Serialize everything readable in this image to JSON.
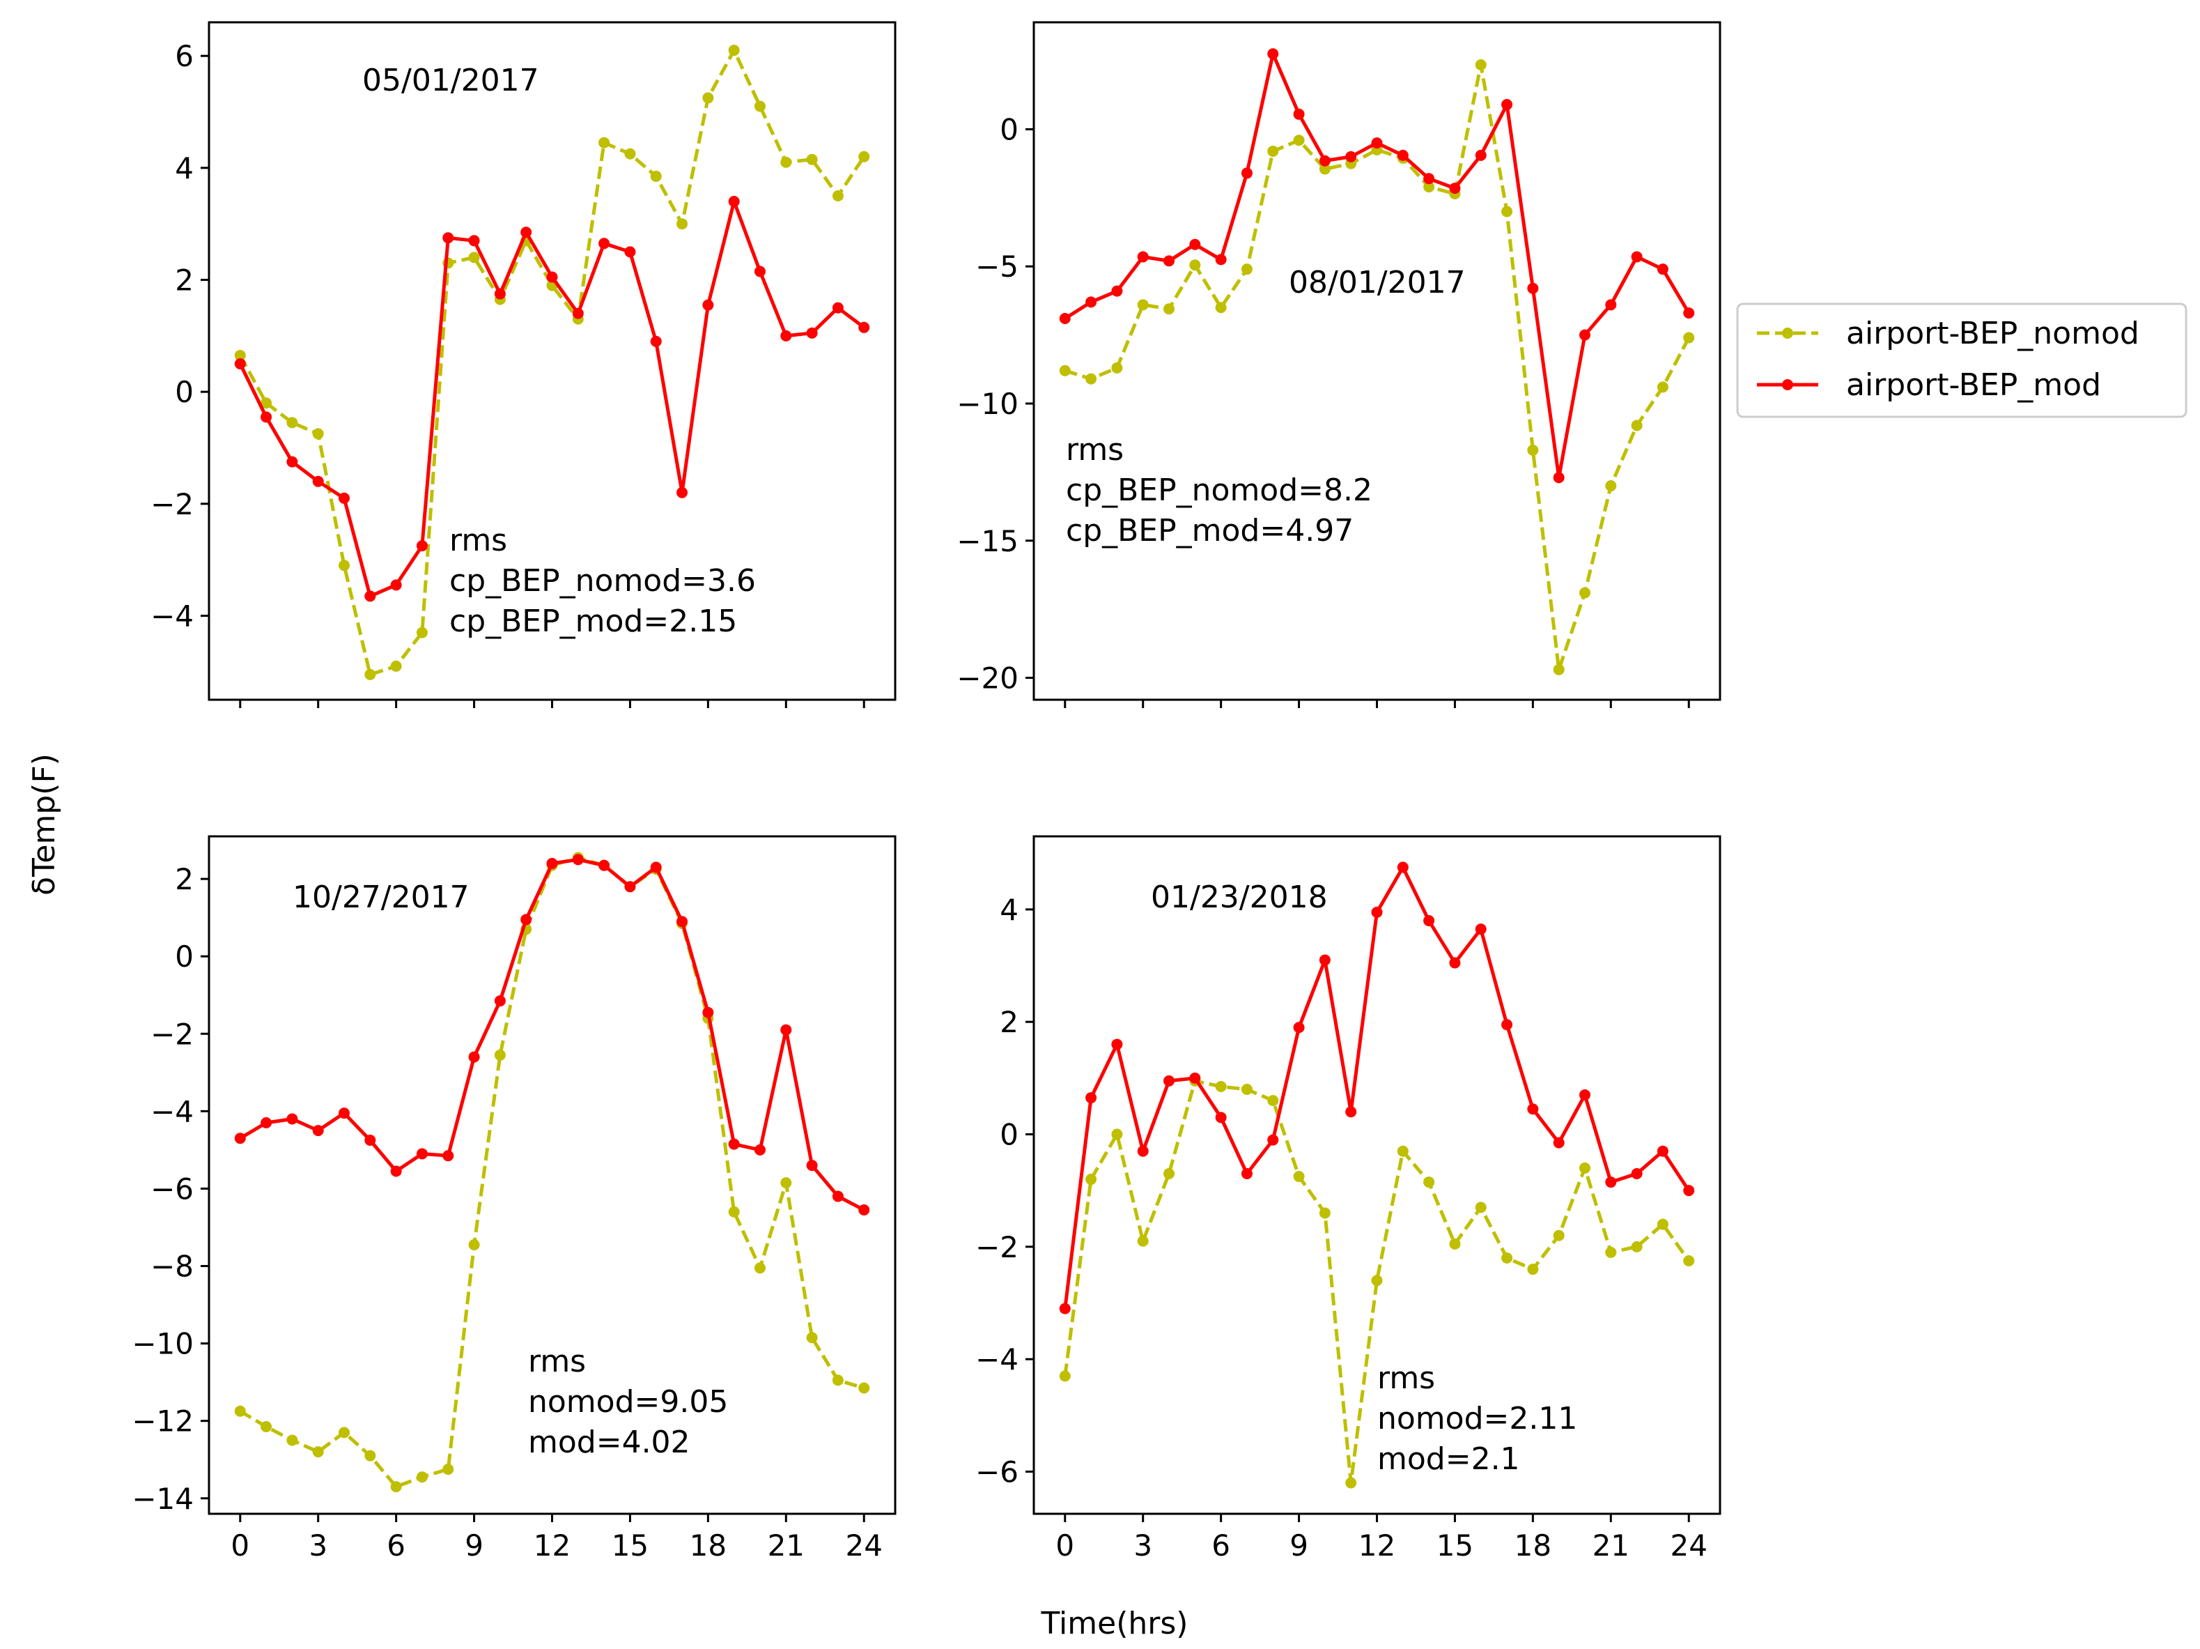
{
  "figure": {
    "ylabel": "δTemp(F)",
    "xlabel": "Time(hrs)"
  },
  "colors": {
    "nomod": "#bfbf00",
    "mod": "#ff0000",
    "axes": "#000000",
    "legend_border": "#cccccc"
  },
  "legend": {
    "placement": "right-center",
    "entries": [
      "airport-BEP_nomod",
      "airport-BEP_mod"
    ]
  },
  "chart_data": [
    {
      "type": "line",
      "title": "05/01/2017",
      "annotation": [
        "rms",
        "cp_BEP_nomod=3.6",
        "cp_BEP_mod=2.15"
      ],
      "x": [
        0,
        1,
        2,
        3,
        4,
        5,
        6,
        7,
        8,
        9,
        10,
        11,
        12,
        13,
        14,
        15,
        16,
        17,
        18,
        19,
        20,
        21,
        22,
        23,
        24
      ],
      "xlim": [
        -1.2,
        25.2
      ],
      "ylim": [
        -5.5,
        6.6
      ],
      "xticks": [
        0,
        3,
        6,
        9,
        12,
        15,
        18,
        21,
        24
      ],
      "xticklabels": [],
      "yticks": [
        -4,
        -2,
        0,
        2,
        4,
        6
      ],
      "yticklabels": [
        "−4",
        "−2",
        "0",
        "2",
        "4",
        "6"
      ],
      "series": [
        {
          "name": "airport-BEP_nomod",
          "style": "dashed",
          "values": [
            0.65,
            -0.2,
            -0.55,
            -0.75,
            -3.1,
            -5.05,
            -4.9,
            -4.3,
            2.3,
            2.4,
            1.65,
            2.7,
            1.9,
            1.3,
            4.45,
            4.25,
            3.85,
            3.0,
            5.25,
            6.1,
            5.1,
            4.1,
            4.15,
            3.5,
            4.2
          ]
        },
        {
          "name": "airport-BEP_mod",
          "style": "solid",
          "values": [
            0.5,
            -0.45,
            -1.25,
            -1.6,
            -1.9,
            -3.65,
            -3.45,
            -2.75,
            2.75,
            2.7,
            1.75,
            2.85,
            2.05,
            1.4,
            2.65,
            2.5,
            0.9,
            -1.8,
            1.55,
            3.4,
            2.15,
            1.0,
            1.05,
            1.5,
            1.15
          ]
        }
      ]
    },
    {
      "type": "line",
      "title": "08/01/2017",
      "annotation": [
        "rms",
        "cp_BEP_nomod=8.2",
        "cp_BEP_mod=4.97"
      ],
      "x": [
        0,
        1,
        2,
        3,
        4,
        5,
        6,
        7,
        8,
        9,
        10,
        11,
        12,
        13,
        14,
        15,
        16,
        17,
        18,
        19,
        20,
        21,
        22,
        23,
        24
      ],
      "xlim": [
        -1.2,
        25.2
      ],
      "ylim": [
        -20.8,
        3.9
      ],
      "xticks": [
        0,
        3,
        6,
        9,
        12,
        15,
        18,
        21,
        24
      ],
      "xticklabels": [],
      "yticks": [
        -20,
        -15,
        -10,
        -5,
        0
      ],
      "yticklabels": [
        "−20",
        "−15",
        "−10",
        "−5",
        "0"
      ],
      "series": [
        {
          "name": "airport-BEP_nomod",
          "style": "dashed",
          "values": [
            -8.8,
            -9.1,
            -8.7,
            -6.4,
            -6.55,
            -4.95,
            -6.5,
            -5.1,
            -0.8,
            -0.4,
            -1.45,
            -1.25,
            -0.75,
            -1.05,
            -2.1,
            -2.35,
            2.35,
            -3.0,
            -11.7,
            -19.7,
            -16.9,
            -13.0,
            -10.8,
            -9.4,
            -7.6
          ]
        },
        {
          "name": "airport-BEP_mod",
          "style": "solid",
          "values": [
            -6.9,
            -6.3,
            -5.9,
            -4.65,
            -4.8,
            -4.2,
            -4.75,
            -1.6,
            2.75,
            0.55,
            -1.15,
            -1.0,
            -0.5,
            -0.95,
            -1.8,
            -2.15,
            -0.95,
            0.9,
            -5.8,
            -12.7,
            -7.5,
            -6.4,
            -4.65,
            -5.1,
            -6.7
          ]
        }
      ]
    },
    {
      "type": "line",
      "title": "10/27/2017",
      "annotation": [
        "rms",
        "nomod=9.05",
        "mod=4.02"
      ],
      "x": [
        0,
        1,
        2,
        3,
        4,
        5,
        6,
        7,
        8,
        9,
        10,
        11,
        12,
        13,
        14,
        15,
        16,
        17,
        18,
        19,
        20,
        21,
        22,
        23,
        24
      ],
      "xlim": [
        -1.2,
        25.2
      ],
      "ylim": [
        -14.4,
        3.1
      ],
      "xticks": [
        0,
        3,
        6,
        9,
        12,
        15,
        18,
        21,
        24
      ],
      "xticklabels": [
        "0",
        "3",
        "6",
        "9",
        "12",
        "15",
        "18",
        "21",
        "24"
      ],
      "yticks": [
        -14,
        -12,
        -10,
        -8,
        -6,
        -4,
        -2,
        0,
        2
      ],
      "yticklabels": [
        "−14",
        "−12",
        "−10",
        "−8",
        "−6",
        "−4",
        "−2",
        "0",
        "2"
      ],
      "series": [
        {
          "name": "airport-BEP_nomod",
          "style": "dashed",
          "values": [
            -11.75,
            -12.15,
            -12.5,
            -12.8,
            -12.3,
            -12.9,
            -13.7,
            -13.45,
            -13.25,
            -7.45,
            -2.55,
            0.7,
            2.35,
            2.55,
            2.35,
            1.8,
            2.25,
            0.85,
            -1.6,
            -6.6,
            -8.05,
            -5.85,
            -9.85,
            -10.95,
            -11.15
          ]
        },
        {
          "name": "airport-BEP_mod",
          "style": "solid",
          "values": [
            -4.7,
            -4.3,
            -4.2,
            -4.5,
            -4.05,
            -4.75,
            -5.55,
            -5.1,
            -5.15,
            -2.6,
            -1.15,
            0.95,
            2.4,
            2.5,
            2.35,
            1.8,
            2.3,
            0.9,
            -1.45,
            -4.85,
            -5.0,
            -1.9,
            -5.4,
            -6.2,
            -6.55
          ]
        }
      ]
    },
    {
      "type": "line",
      "title": "01/23/2018",
      "annotation": [
        "rms",
        "nomod=2.11",
        "mod=2.1"
      ],
      "x": [
        0,
        1,
        2,
        3,
        4,
        5,
        6,
        7,
        8,
        9,
        10,
        11,
        12,
        13,
        14,
        15,
        16,
        17,
        18,
        19,
        20,
        21,
        22,
        23,
        24
      ],
      "xlim": [
        -1.2,
        25.2
      ],
      "ylim": [
        -6.75,
        5.3
      ],
      "xticks": [
        0,
        3,
        6,
        9,
        12,
        15,
        18,
        21,
        24
      ],
      "xticklabels": [
        "0",
        "3",
        "6",
        "9",
        "12",
        "15",
        "18",
        "21",
        "24"
      ],
      "yticks": [
        -6,
        -4,
        -2,
        0,
        2,
        4
      ],
      "yticklabels": [
        "−6",
        "−4",
        "−2",
        "0",
        "2",
        "4"
      ],
      "series": [
        {
          "name": "airport-BEP_nomod",
          "style": "dashed",
          "values": [
            -4.3,
            -0.8,
            0.0,
            -1.9,
            -0.7,
            0.95,
            0.85,
            0.8,
            0.6,
            -0.75,
            -1.4,
            -6.2,
            -2.6,
            -0.3,
            -0.85,
            -1.95,
            -1.3,
            -2.2,
            -2.4,
            -1.8,
            -0.6,
            -2.1,
            -2.0,
            -1.6,
            -2.25
          ]
        },
        {
          "name": "airport-BEP_mod",
          "style": "solid",
          "values": [
            -3.1,
            0.65,
            1.6,
            -0.3,
            0.95,
            1.0,
            0.3,
            -0.7,
            -0.1,
            1.9,
            3.1,
            0.4,
            3.95,
            4.75,
            3.8,
            3.05,
            3.65,
            1.95,
            0.45,
            -0.15,
            0.7,
            -0.85,
            -0.7,
            -0.3,
            -1.0
          ]
        }
      ]
    }
  ]
}
